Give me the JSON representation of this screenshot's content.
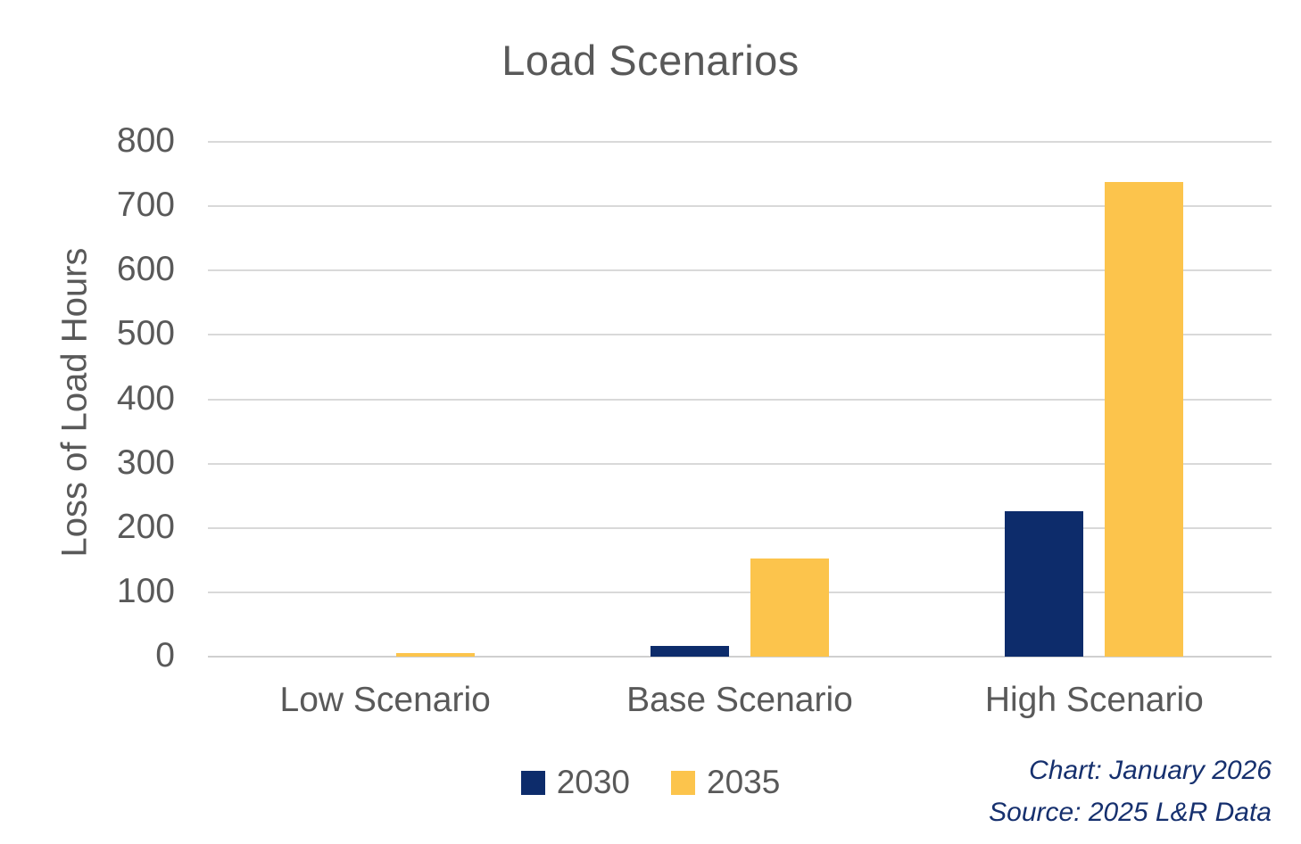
{
  "title": "Load Scenarios",
  "chart_data": {
    "type": "bar",
    "title": "Load Scenarios",
    "categories": [
      "Low Scenario",
      "Base Scenario",
      "High Scenario"
    ],
    "series": [
      {
        "name": "2030",
        "color": "#0d2c6b",
        "values": [
          0,
          16,
          226
        ]
      },
      {
        "name": "2035",
        "color": "#fcc44c",
        "values": [
          6,
          153,
          738
        ]
      }
    ],
    "xlabel": "",
    "ylabel": "Loss of Load Hours",
    "ylim": [
      0,
      800
    ],
    "ytick_step": 100,
    "yticks": [
      0,
      100,
      200,
      300,
      400,
      500,
      600,
      700,
      800
    ],
    "grid": "horizontal",
    "legend_position": "bottom-center"
  },
  "notes": {
    "chart_date": "Chart: January 2026",
    "source": "Source: 2025 L&R Data"
  },
  "colors": {
    "series_2030": "#0d2c6b",
    "series_2035": "#fcc44c",
    "axis_text": "#595959",
    "gridline": "#d9d9d9",
    "note_text": "#16306e",
    "background": "#ffffff"
  }
}
